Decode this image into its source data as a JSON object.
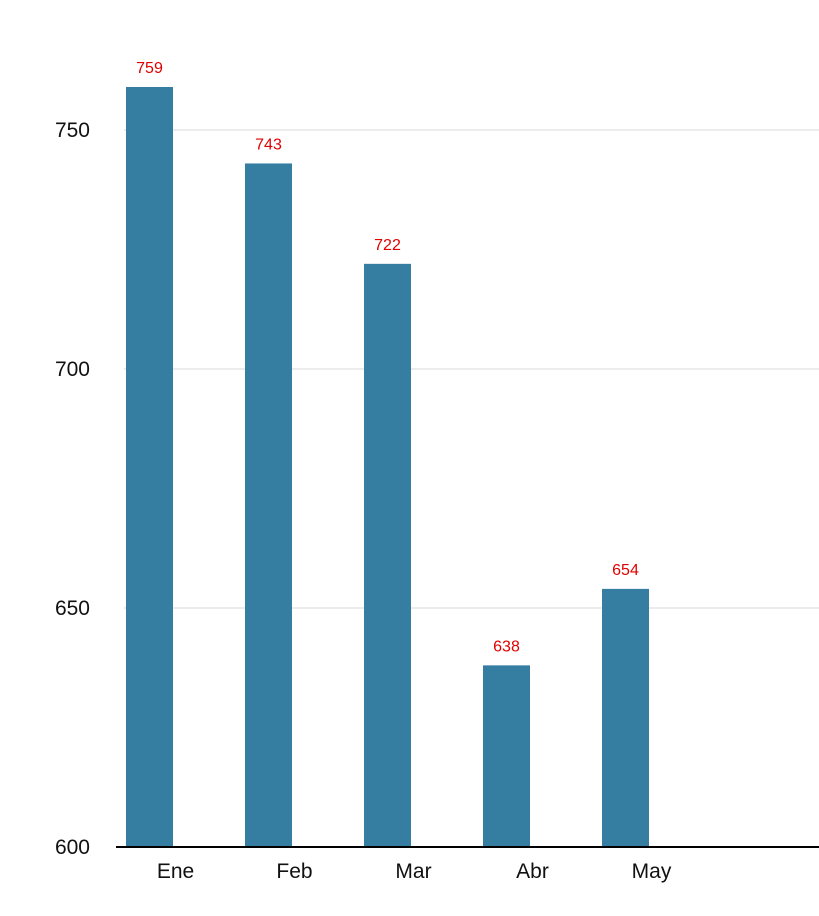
{
  "chart_data": {
    "type": "bar",
    "categories": [
      "Ene",
      "Feb",
      "Mar",
      "Abr",
      "May"
    ],
    "values": [
      759,
      743,
      722,
      638,
      654
    ],
    "data_labels": [
      "759",
      "743",
      "722",
      "638",
      "654"
    ],
    "yticks": [
      600,
      650,
      700,
      750
    ],
    "ytick_labels": [
      "600",
      "650",
      "700",
      "750"
    ],
    "ylim": [
      600,
      775
    ],
    "grid": true,
    "legend": "none",
    "colors": {
      "bar": "#357ea2",
      "data_label": "#e00000",
      "grid": "#d9d9d9",
      "axis": "#000000"
    }
  }
}
